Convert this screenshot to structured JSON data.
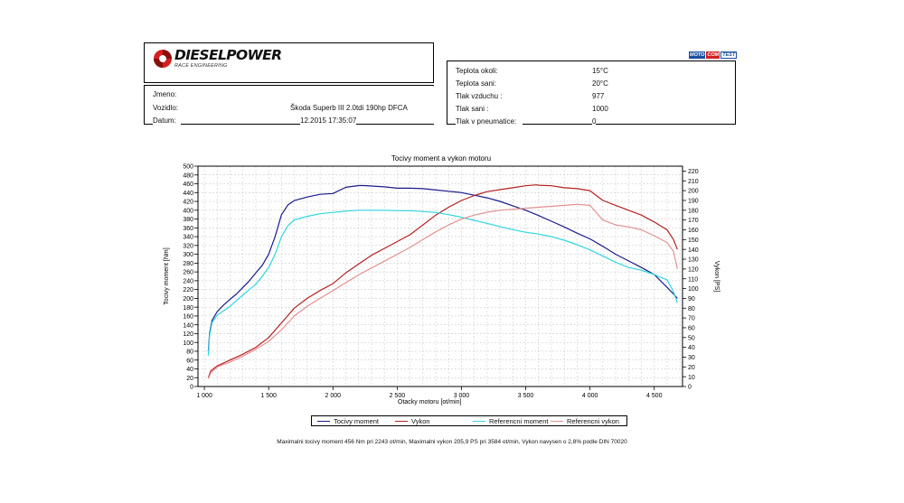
{
  "logo": {
    "text": "DIESELPOWER",
    "subtext": "RACE ENGINEERING"
  },
  "brand": {
    "part1": "MOTO",
    "part2": "COM",
    "part3": "TEST"
  },
  "vehicle": {
    "name_label": "Jmeno:",
    "name_value": "",
    "vehicle_label": "Vozidlo:",
    "vehicle_value": "Škoda Superb III 2.0tdi 190hp DFCA",
    "date_label": "Datum:",
    "date_value": "12.2015 17:35:07"
  },
  "conditions": [
    {
      "label": "Teplota okoli:",
      "value": "15°C"
    },
    {
      "label": "Teplota sani:",
      "value": "20°C"
    },
    {
      "label": "Tlak vzduchu :",
      "value": "977"
    },
    {
      "label": "Tlak sani :",
      "value": "1000"
    },
    {
      "label": "Tlak v pneumatice:",
      "value": "0"
    }
  ],
  "footnote": "Maximalni tocivy moment 456 Nm pri 2243 ot/min,  Maximalni vykon 205,9 PS pri 3584 ot/min,  Vykon navysen o 2,8% podle DIN 70020",
  "chart_data": {
    "type": "line",
    "title": "Tocivy moment a vykon motoru",
    "xlabel": "Otacky motoru [ot/min]",
    "ylabel": "Tocivy moment [Nm]",
    "y2label": "Vykon [PS]",
    "xlim": [
      950,
      4720
    ],
    "ylim": [
      0,
      500
    ],
    "y2lim": [
      0,
      225
    ],
    "xticks": [
      1000,
      1500,
      2000,
      2500,
      3000,
      3500,
      4000,
      4500
    ],
    "xtick_labels": [
      "1 000",
      "1 500",
      "2 000",
      "2 500",
      "3 000",
      "3 500",
      "4 000",
      "4 500"
    ],
    "yticks": [
      0,
      20,
      40,
      60,
      80,
      100,
      120,
      140,
      160,
      180,
      200,
      220,
      240,
      260,
      280,
      300,
      320,
      340,
      360,
      380,
      400,
      420,
      440,
      460,
      480,
      500
    ],
    "y2ticks": [
      0,
      10,
      20,
      30,
      40,
      50,
      60,
      70,
      80,
      90,
      100,
      110,
      120,
      130,
      140,
      150,
      160,
      170,
      180,
      190,
      200,
      210,
      220
    ],
    "grid": true,
    "legend_placement": "bottom",
    "series": [
      {
        "name": "Tocivy moment",
        "axis": "left",
        "color": "#1a1a8c",
        "x": [
          1030,
          1040,
          1060,
          1100,
          1150,
          1200,
          1250,
          1300,
          1350,
          1400,
          1450,
          1500,
          1550,
          1600,
          1650,
          1700,
          1800,
          1900,
          2000,
          2100,
          2200,
          2243,
          2300,
          2400,
          2500,
          2600,
          2700,
          2800,
          2900,
          3000,
          3100,
          3200,
          3300,
          3400,
          3500,
          3600,
          3700,
          3800,
          3900,
          4000,
          4100,
          4200,
          4300,
          4400,
          4500,
          4600,
          4650,
          4680
        ],
        "y": [
          80,
          120,
          150,
          170,
          185,
          198,
          210,
          225,
          240,
          258,
          275,
          300,
          340,
          390,
          412,
          422,
          430,
          436,
          438,
          452,
          456,
          456,
          455,
          453,
          450,
          450,
          449,
          446,
          443,
          440,
          434,
          428,
          420,
          410,
          400,
          388,
          375,
          362,
          348,
          335,
          318,
          300,
          285,
          270,
          254,
          225,
          210,
          200
        ]
      },
      {
        "name": "Vykon",
        "axis": "right",
        "color": "#b52020",
        "x": [
          1030,
          1050,
          1100,
          1200,
          1300,
          1400,
          1500,
          1600,
          1700,
          1800,
          1900,
          2000,
          2100,
          2200,
          2300,
          2400,
          2500,
          2600,
          2700,
          2800,
          2900,
          3000,
          3100,
          3200,
          3300,
          3400,
          3500,
          3584,
          3600,
          3700,
          3800,
          3900,
          4000,
          4100,
          4200,
          4300,
          4400,
          4500,
          4600,
          4650,
          4680
        ],
        "y": [
          9,
          16,
          21,
          27,
          33,
          40,
          50,
          65,
          80,
          90,
          98,
          105,
          116,
          125,
          134,
          141,
          148,
          155,
          165,
          175,
          183,
          190,
          195,
          199,
          201,
          203,
          205,
          205.9,
          205.5,
          205,
          203,
          202,
          200,
          190,
          185,
          180,
          175,
          168,
          160,
          150,
          140
        ]
      },
      {
        "name": "Referencni moment",
        "axis": "left",
        "color": "#2fd6df",
        "x": [
          1030,
          1040,
          1060,
          1100,
          1150,
          1200,
          1250,
          1300,
          1350,
          1400,
          1450,
          1500,
          1550,
          1600,
          1650,
          1700,
          1800,
          1900,
          2000,
          2100,
          2200,
          2300,
          2400,
          2500,
          2600,
          2700,
          2800,
          2900,
          3000,
          3100,
          3200,
          3300,
          3400,
          3500,
          3600,
          3700,
          3800,
          3900,
          4000,
          4100,
          4200,
          4300,
          4400,
          4500,
          4600,
          4650,
          4680
        ],
        "y": [
          70,
          115,
          145,
          162,
          172,
          182,
          195,
          208,
          220,
          232,
          250,
          270,
          300,
          340,
          365,
          378,
          386,
          392,
          395,
          398,
          400,
          400,
          400,
          399,
          399,
          397,
          395,
          390,
          384,
          377,
          370,
          363,
          356,
          350,
          346,
          340,
          332,
          322,
          310,
          296,
          282,
          270,
          264,
          254,
          242,
          215,
          190
        ]
      },
      {
        "name": "Referencni vykon",
        "axis": "right",
        "color": "#e59090",
        "x": [
          1030,
          1050,
          1100,
          1200,
          1300,
          1400,
          1500,
          1600,
          1700,
          1800,
          1900,
          2000,
          2100,
          2200,
          2300,
          2400,
          2500,
          2600,
          2700,
          2800,
          2900,
          3000,
          3100,
          3200,
          3300,
          3400,
          3500,
          3600,
          3700,
          3800,
          3900,
          4000,
          4100,
          4200,
          4300,
          4400,
          4500,
          4600,
          4650,
          4680
        ],
        "y": [
          8,
          14,
          20,
          25,
          31,
          38,
          46,
          58,
          72,
          82,
          90,
          98,
          106,
          114,
          121,
          128,
          135,
          142,
          150,
          158,
          165,
          171,
          175,
          178,
          180,
          181,
          182,
          183,
          184,
          185,
          186,
          185,
          170,
          165,
          163,
          160,
          154,
          147,
          138,
          120
        ]
      }
    ]
  }
}
